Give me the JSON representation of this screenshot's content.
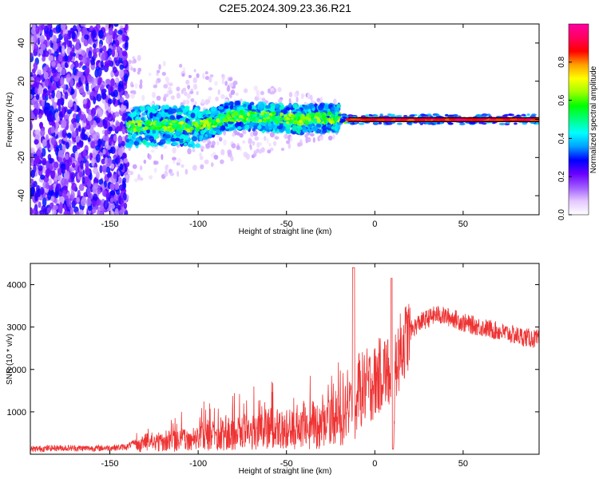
{
  "title": "C2E5.2024.309.23.36.R21",
  "chart_data": [
    {
      "type": "heatmap",
      "xlabel": "Height of straight line (km)",
      "ylabel": "Frequency (Hz)",
      "xlim": [
        -195,
        93
      ],
      "ylim": [
        -50,
        50
      ],
      "xticks": [
        -150,
        -100,
        -50,
        0,
        50
      ],
      "yticks": [
        -40,
        -20,
        0,
        20,
        40
      ],
      "grid": false,
      "colorbar": {
        "label": "Normalized spectral amplitude",
        "range": [
          0,
          1
        ],
        "ticks": [
          0.0,
          0.2,
          0.4,
          0.6,
          0.8
        ],
        "colors": [
          "#ffffff",
          "#e4c8ff",
          "#a05cff",
          "#6a00ff",
          "#0000ff",
          "#00a0ff",
          "#00ffff",
          "#00ff80",
          "#00ff00",
          "#a0ff00",
          "#ffff00",
          "#ffa000",
          "#ff0000",
          "#ff0060",
          "#ff00a0"
        ]
      },
      "regions": [
        {
          "x_range": [
            -195,
            -140
          ],
          "freq_range": [
            -50,
            50
          ],
          "amplitude": 0.15
        },
        {
          "x_range": [
            -140,
            -100
          ],
          "freq_range": [
            -12,
            10
          ],
          "amplitude": 0.3
        },
        {
          "x_range": [
            -100,
            -20
          ],
          "freq_range": [
            -8,
            10
          ],
          "amplitude": 0.45
        },
        {
          "x_range": [
            -20,
            93
          ],
          "freq_center": 0,
          "amplitude": 0.9
        }
      ],
      "ridge": {
        "x": [
          -140,
          -120,
          -100,
          -80,
          -60,
          -40,
          -20,
          -10,
          0,
          20,
          40,
          60,
          93
        ],
        "freq": [
          -4,
          -3,
          -4,
          2,
          1,
          0,
          1,
          -1,
          0,
          0,
          0,
          0,
          0
        ]
      }
    },
    {
      "type": "line",
      "xlabel": "Height of straight line (km)",
      "ylabel": "SNR (10 * v/v)",
      "xlim": [
        -195,
        93
      ],
      "ylim": [
        0,
        4500
      ],
      "xticks": [
        -150,
        -100,
        -50,
        0,
        50
      ],
      "yticks": [
        1000,
        2000,
        3000,
        4000
      ],
      "grid": false,
      "color": "#ee3333",
      "series": [
        {
          "x": [
            -195,
            -180,
            -160,
            -145,
            -140,
            -135,
            -130,
            -120,
            -110,
            -100,
            -90,
            -80,
            -70,
            -60,
            -50,
            -40,
            -30,
            -25,
            -20,
            -15,
            -12,
            -10,
            -8,
            -5,
            0,
            5,
            8,
            10,
            12,
            15,
            20,
            25,
            30,
            35,
            40,
            45,
            50,
            60,
            70,
            80,
            93
          ],
          "y": [
            120,
            150,
            140,
            160,
            180,
            300,
            500,
            550,
            600,
            700,
            800,
            900,
            950,
            1000,
            1050,
            1100,
            1200,
            1400,
            1500,
            1700,
            2000,
            1600,
            1500,
            1600,
            1700,
            2000,
            1900,
            300,
            2200,
            2500,
            2900,
            3100,
            3200,
            3300,
            3250,
            3200,
            3100,
            3000,
            2900,
            2800,
            2700
          ]
        }
      ]
    }
  ]
}
